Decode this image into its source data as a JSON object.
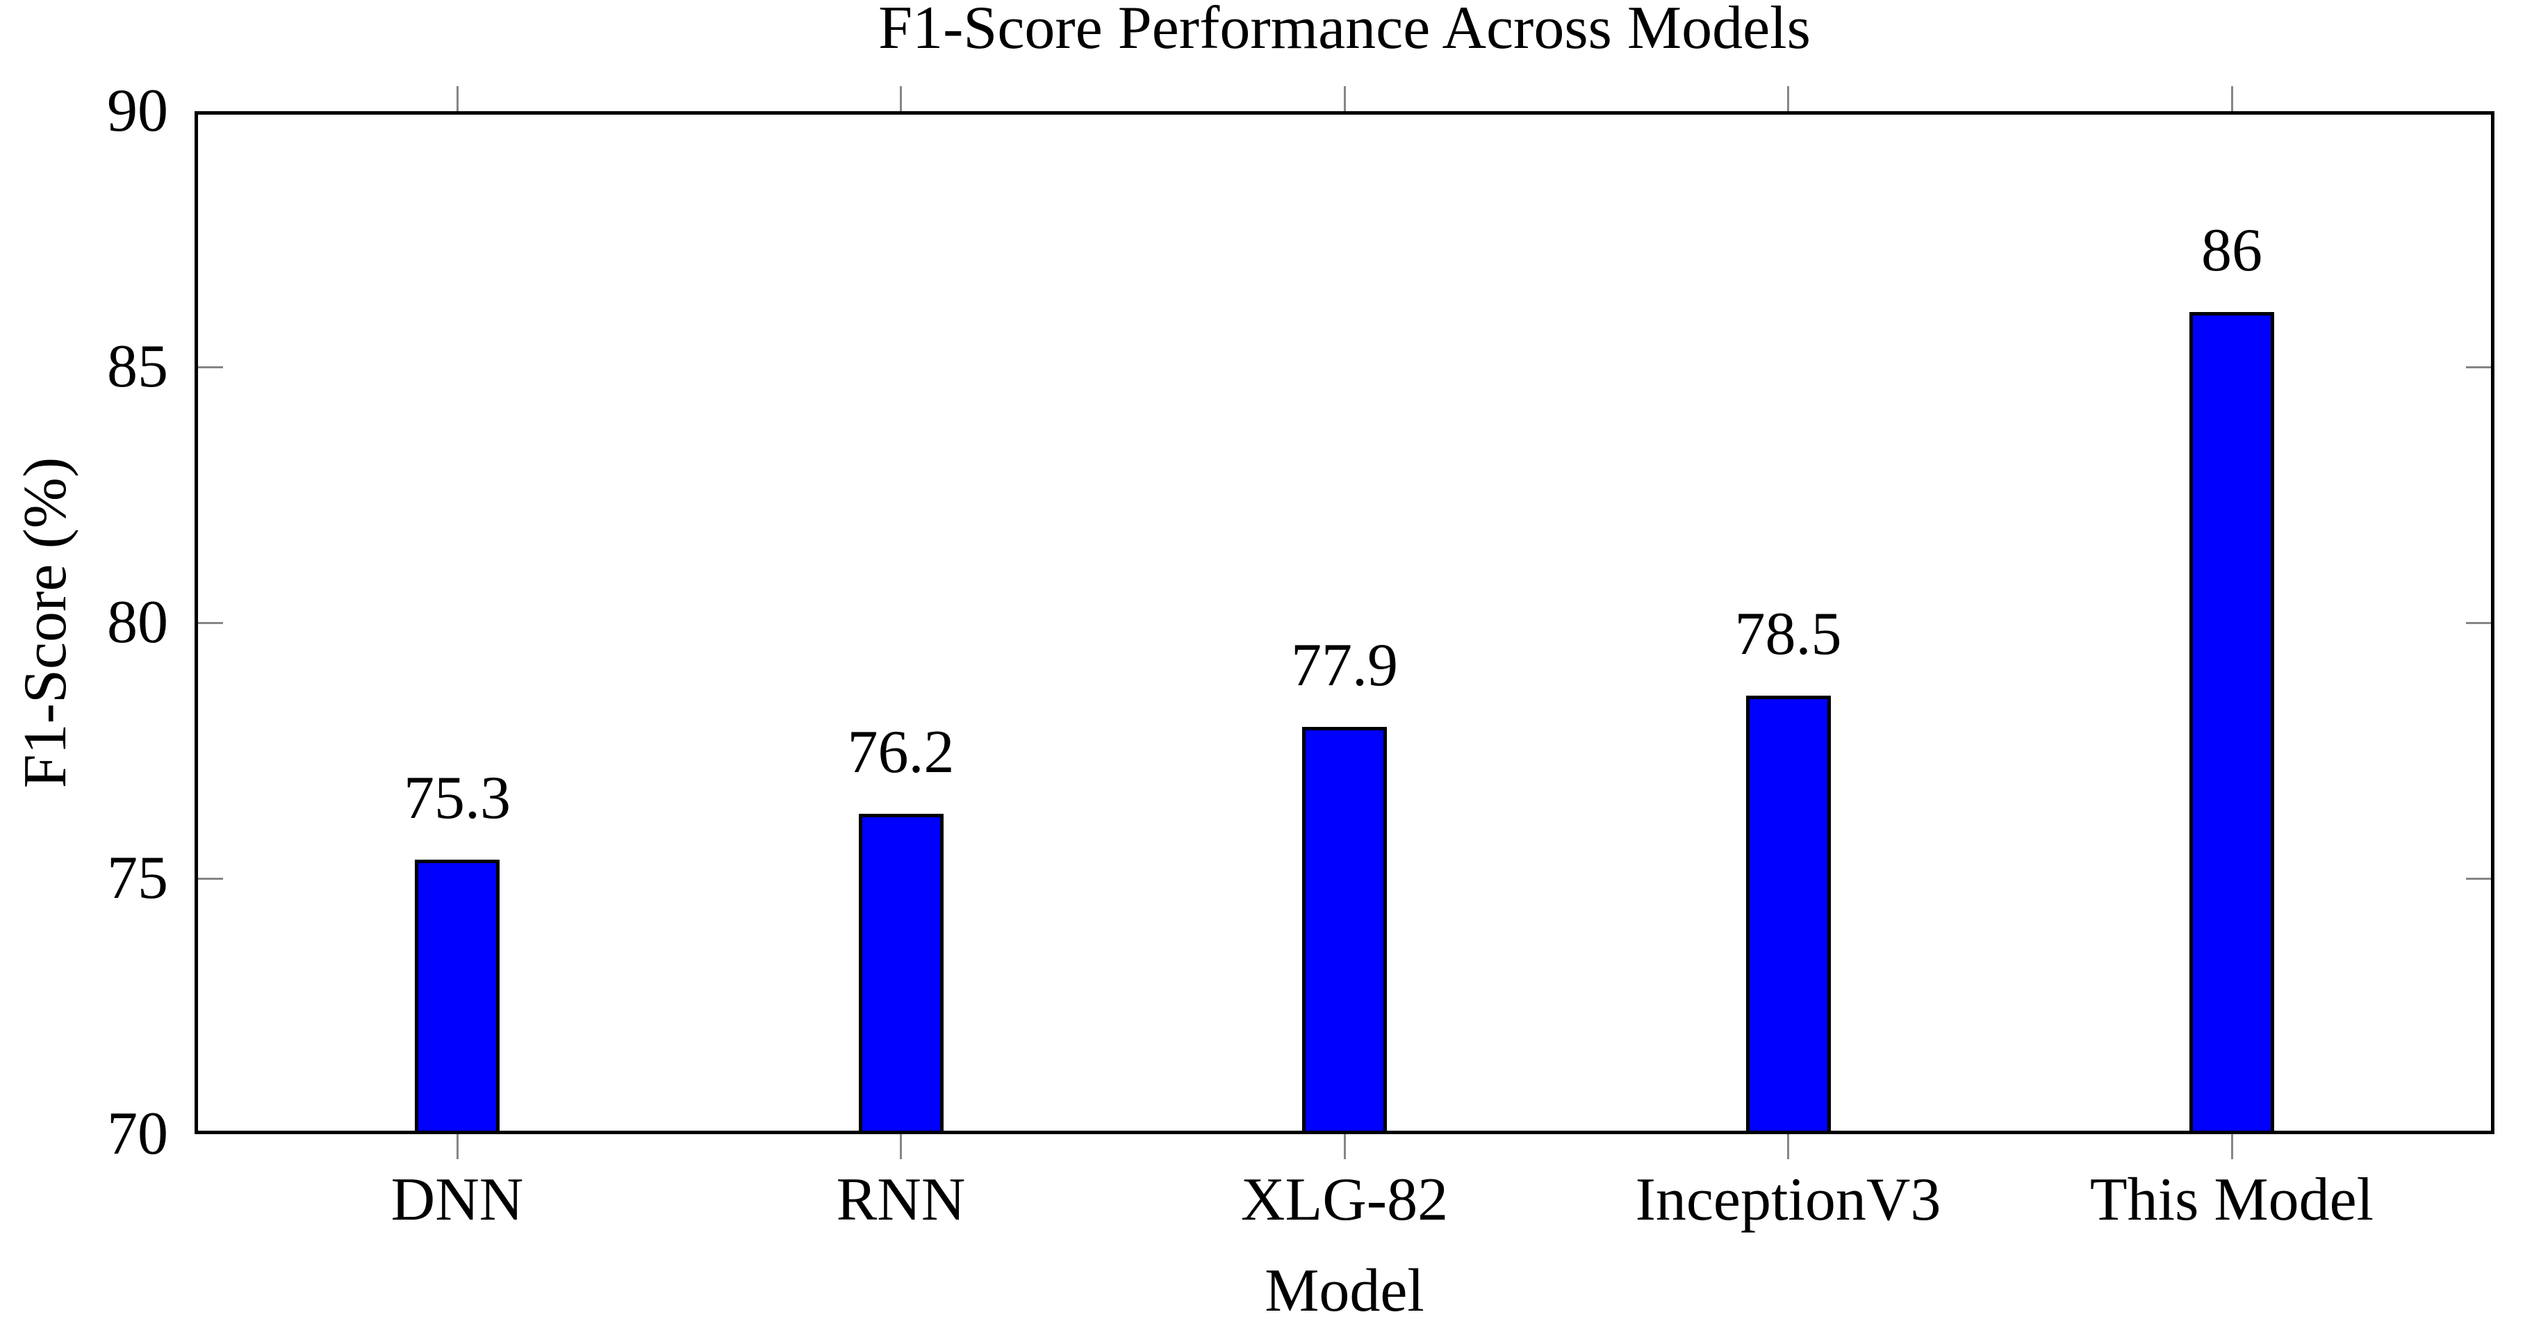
{
  "chart_data": {
    "type": "bar",
    "title": "F1-Score Performance Across Models",
    "xlabel": "Model",
    "ylabel": "F1-Score (%)",
    "categories": [
      "DNN",
      "RNN",
      "XLG-82",
      "InceptionV3",
      "This Model"
    ],
    "values": [
      75.3,
      76.2,
      77.9,
      78.5,
      86
    ],
    "value_labels": [
      "75.3",
      "76.2",
      "77.9",
      "78.5",
      "86"
    ],
    "ylim": [
      70,
      90
    ],
    "yticks": [
      70,
      75,
      80,
      85,
      90
    ],
    "grid": false,
    "legend": null,
    "bar_color": "#0000ff",
    "bar_border_color": "#000000",
    "axis_color": "#000000",
    "tick_color": "#868686",
    "text_color": "#000000",
    "background_color": "#ffffff"
  }
}
